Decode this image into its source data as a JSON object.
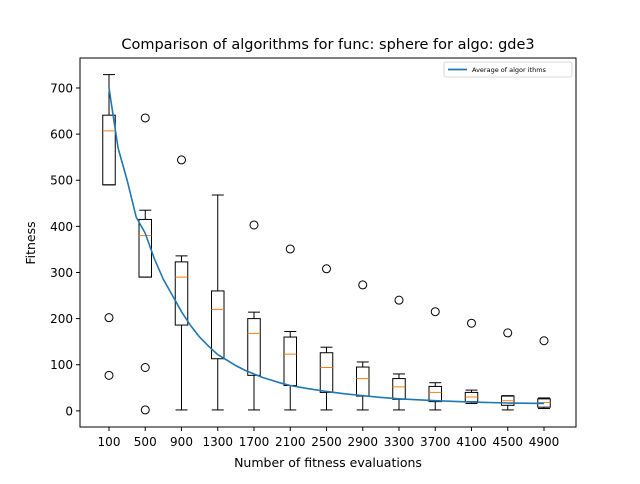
{
  "chart_data": {
    "type": "box",
    "title": "Comparison of algorithms for func: sphere for algo: gde3",
    "xlabel": "Number of fitness evaluations",
    "ylabel": "Fitness",
    "ylim": [
      -35,
      765
    ],
    "yticks": [
      0,
      100,
      200,
      300,
      400,
      500,
      600,
      700
    ],
    "grid": false,
    "legend_position": "top-right",
    "categories": [
      "100",
      "500",
      "900",
      "1300",
      "1700",
      "2100",
      "2500",
      "2900",
      "3300",
      "3700",
      "4100",
      "4500",
      "4900"
    ],
    "boxes": [
      {
        "whislo": 490,
        "q1": 490,
        "med": 607,
        "q3": 641,
        "whishi": 729,
        "fliers": [
          202,
          77
        ]
      },
      {
        "whislo": 290,
        "q1": 290,
        "med": 380,
        "q3": 415,
        "whishi": 435,
        "fliers": [
          635,
          94,
          2
        ]
      },
      {
        "whislo": 2,
        "q1": 186,
        "med": 290,
        "q3": 323,
        "whishi": 336,
        "fliers": [
          544
        ]
      },
      {
        "whislo": 2,
        "q1": 113,
        "med": 220,
        "q3": 260,
        "whishi": 468,
        "fliers": []
      },
      {
        "whislo": 2,
        "q1": 77,
        "med": 168,
        "q3": 200,
        "whishi": 214,
        "fliers": [
          403
        ]
      },
      {
        "whislo": 2,
        "q1": 55,
        "med": 123,
        "q3": 160,
        "whishi": 172,
        "fliers": [
          351
        ]
      },
      {
        "whislo": 2,
        "q1": 40,
        "med": 94,
        "q3": 126,
        "whishi": 138,
        "fliers": [
          308
        ]
      },
      {
        "whislo": 2,
        "q1": 32,
        "med": 70,
        "q3": 95,
        "whishi": 106,
        "fliers": [
          273
        ]
      },
      {
        "whislo": 2,
        "q1": 25,
        "med": 52,
        "q3": 70,
        "whishi": 80,
        "fliers": [
          240
        ]
      },
      {
        "whislo": 2,
        "q1": 20,
        "med": 40,
        "q3": 53,
        "whishi": 61,
        "fliers": [
          215
        ]
      },
      {
        "whislo": 16,
        "q1": 20,
        "med": 30,
        "q3": 40,
        "whishi": 45,
        "fliers": [
          190
        ]
      },
      {
        "whislo": 2,
        "q1": 12,
        "med": 22,
        "q3": 32,
        "whishi": 33,
        "fliers": [
          169
        ]
      },
      {
        "whislo": 5,
        "q1": 8,
        "med": 18,
        "q3": 26,
        "whishi": 28,
        "fliers": [
          152
        ]
      }
    ],
    "series": [
      {
        "name": "Average of algor ithms",
        "color": "#1f77b4",
        "x_index": [
          0,
          0.25,
          0.5,
          0.75,
          1,
          1.25,
          1.5,
          1.75,
          2,
          2.25,
          2.5,
          2.75,
          3,
          3.25,
          3.5,
          3.75,
          4,
          4.25,
          4.5,
          4.75,
          5,
          5.5,
          6,
          6.5,
          7,
          7.5,
          8,
          9,
          10,
          11,
          12
        ],
        "values": [
          700,
          570,
          500,
          420,
          385,
          330,
          285,
          250,
          215,
          185,
          160,
          140,
          122,
          110,
          98,
          88,
          80,
          72,
          66,
          60,
          55,
          48,
          42,
          37,
          33,
          29,
          26,
          22,
          19,
          17,
          16
        ]
      }
    ],
    "box_color": "#000000",
    "median_color": "#ff7f0e"
  }
}
